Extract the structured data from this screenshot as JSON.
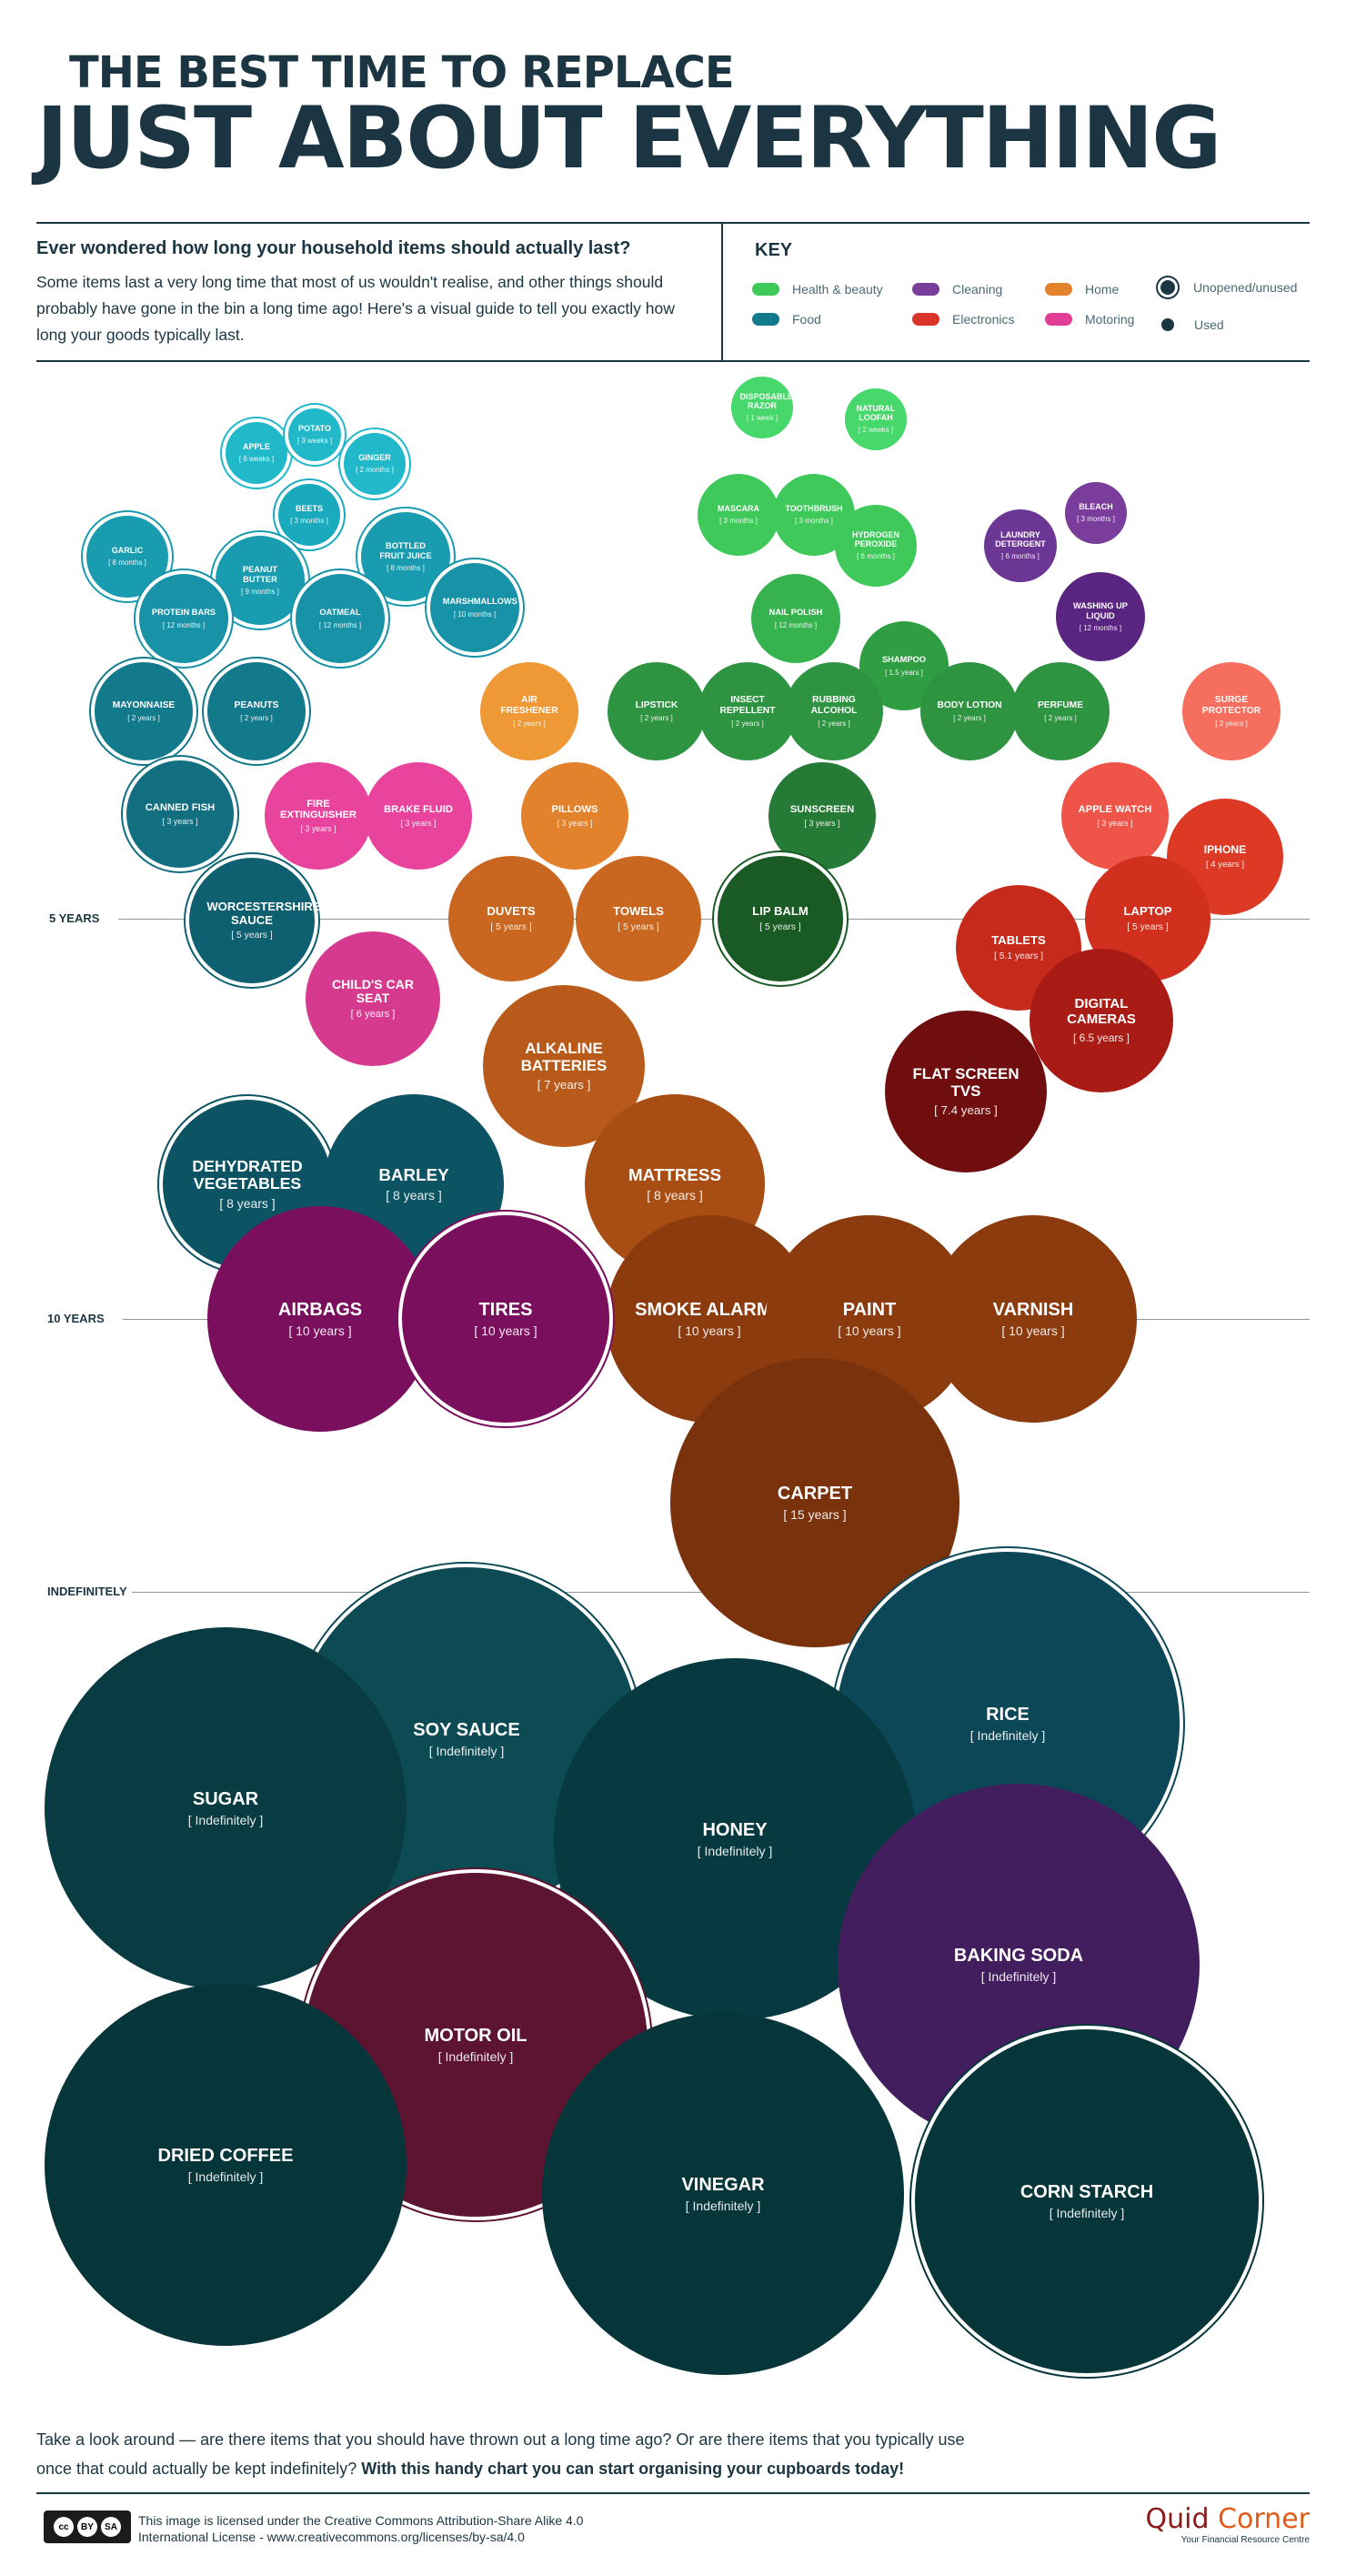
{
  "header": {
    "title_line1": "THE BEST TIME TO REPLACE",
    "title_line2": "JUST ABOUT EVERYTHING"
  },
  "intro": {
    "heading": "Ever wondered how long your household items should actually last?",
    "body": "Some items last a very long time that most of us wouldn't realise, and other things should probably have gone in the bin a long time ago! Here's a visual guide to tell you exactly how long your goods typically last."
  },
  "key": {
    "title": "KEY",
    "categories": [
      {
        "label": "Health & beauty",
        "color": "#3fc95a"
      },
      {
        "label": "Food",
        "color": "#137a8c"
      },
      {
        "label": "Cleaning",
        "color": "#7b3d9b"
      },
      {
        "label": "Electronics",
        "color": "#d9352a"
      },
      {
        "label": "Home",
        "color": "#e3822c"
      },
      {
        "label": "Motoring",
        "color": "#e23d97"
      }
    ],
    "unopened": "Unopened/unused",
    "used": "Used"
  },
  "timeline": {
    "five_years": "5 YEARS",
    "ten_years": "10 YEARS",
    "indefinitely": "INDEFINITELY"
  },
  "items": [
    {
      "name": "DISPOSABLE RAZOR",
      "duration": "[ 1 week ]",
      "color": "#46d86a"
    },
    {
      "name": "NATURAL LOOFAH",
      "duration": "[ 2 weeks ]",
      "color": "#46d86a"
    },
    {
      "name": "MASCARA",
      "duration": "[ 3 months ]",
      "color": "#3fc95a"
    },
    {
      "name": "TOOTHBRUSH",
      "duration": "[ 3 months ]",
      "color": "#3fc95a"
    },
    {
      "name": "HYDROGEN PEROXIDE",
      "duration": "[ 6 months ]",
      "color": "#3fc95a"
    },
    {
      "name": "NAIL POLISH",
      "duration": "[ 12 months ]",
      "color": "#36b24e"
    },
    {
      "name": "SHAMPOO",
      "duration": "[ 1.5 years ]",
      "color": "#2f9e43"
    },
    {
      "name": "LIPSTICK",
      "duration": "[ 2 years ]",
      "color": "#2f9442"
    },
    {
      "name": "INSECT REPELLENT",
      "duration": "[ 2 years ]",
      "color": "#2f9442"
    },
    {
      "name": "RUBBING ALCOHOL",
      "duration": "[ 2 years ]",
      "color": "#2f9442"
    },
    {
      "name": "BODY LOTION",
      "duration": "[ 2 years ]",
      "color": "#2f9442"
    },
    {
      "name": "PERFUME",
      "duration": "[ 2 years ]",
      "color": "#2f9442"
    },
    {
      "name": "SUNSCREEN",
      "duration": "[ 3 years ]",
      "color": "#257a36"
    },
    {
      "name": "LIP BALM",
      "duration": "[ 5 years ]",
      "color": "#1a5a25"
    },
    {
      "name": "LAUNDRY DETERGENT",
      "duration": "[ 6 months ]",
      "color": "#6b3694"
    },
    {
      "name": "BLEACH",
      "duration": "[ 3 months ]",
      "color": "#7b3d9b"
    },
    {
      "name": "WASHING UP LIQUID",
      "duration": "[ 12 months ]",
      "color": "#5a2580"
    },
    {
      "name": "APPLE",
      "duration": "[ 6 weeks ]",
      "color": "#21b8c9"
    },
    {
      "name": "POTATO",
      "duration": "[ 3 weeks ]",
      "color": "#21b8c9"
    },
    {
      "name": "GINGER",
      "duration": "[ 2 months ]",
      "color": "#21b8c9"
    },
    {
      "name": "BEETS",
      "duration": "[ 3 months ]",
      "color": "#1aaabd"
    },
    {
      "name": "GARLIC",
      "duration": "[ 8 months ]",
      "color": "#1a9cb0"
    },
    {
      "name": "PEANUT BUTTER",
      "duration": "[ 9 months ]",
      "color": "#1a9cb0"
    },
    {
      "name": "BOTTLED FRUIT JUICE",
      "duration": "[ 8 months ]",
      "color": "#1a9cb0"
    },
    {
      "name": "PROTEIN BARS",
      "duration": "[ 12 months ]",
      "color": "#1792a6"
    },
    {
      "name": "OATMEAL",
      "duration": "[ 12 months ]",
      "color": "#1792a6"
    },
    {
      "name": "MARSHMALLOWS",
      "duration": "[ 10 months ]",
      "color": "#1792a6"
    },
    {
      "name": "MAYONNAISE",
      "duration": "[ 2 years ]",
      "color": "#137a8c"
    },
    {
      "name": "PEANUTS",
      "duration": "[ 2 years ]",
      "color": "#137a8c"
    },
    {
      "name": "CANNED FISH",
      "duration": "[ 3 years ]",
      "color": "#116f80"
    },
    {
      "name": "WORCESTERSHIRE SAUCE",
      "duration": "[ 5 years ]",
      "color": "#0e6070"
    },
    {
      "name": "DEHYDRATED VEGETABLES",
      "duration": "[ 8 years ]",
      "color": "#0c5464"
    },
    {
      "name": "BARLEY",
      "duration": "[ 8 years ]",
      "color": "#0c5464"
    },
    {
      "name": "AIR FRESHENER",
      "duration": "[ 2 years ]",
      "color": "#ef9836"
    },
    {
      "name": "PILLOWS",
      "duration": "[ 3 years ]",
      "color": "#e3822c"
    },
    {
      "name": "DUVETS",
      "duration": "[ 5 years ]",
      "color": "#c96620"
    },
    {
      "name": "TOWELS",
      "duration": "[ 5 years ]",
      "color": "#c96620"
    },
    {
      "name": "ALKALINE BATTERIES",
      "duration": "[ 7 years ]",
      "color": "#b85a1a"
    },
    {
      "name": "MATTRESS",
      "duration": "[ 8 years ]",
      "color": "#a84e14"
    },
    {
      "name": "SMOKE ALARMS",
      "duration": "[ 10 years ]",
      "color": "#8c3b0e"
    },
    {
      "name": "PAINT",
      "duration": "[ 10 years ]",
      "color": "#8c3b0e"
    },
    {
      "name": "VARNISH",
      "duration": "[ 10 years ]",
      "color": "#8c3b0e"
    },
    {
      "name": "CARPET",
      "duration": "[ 15 years ]",
      "color": "#7a320c"
    },
    {
      "name": "FIRE EXTINGUISHER",
      "duration": "[ 3 years ]",
      "color": "#e8449e"
    },
    {
      "name": "BRAKE FLUID",
      "duration": "[ 3 years ]",
      "color": "#e8449e"
    },
    {
      "name": "CHILD'S CAR SEAT",
      "duration": "[ 6 years ]",
      "color": "#d63a8f"
    },
    {
      "name": "AIRBAGS",
      "duration": "[ 10 years ]",
      "color": "#7a0f5e"
    },
    {
      "name": "TIRES",
      "duration": "[ 10 years ]",
      "color": "#7a0f5e"
    },
    {
      "name": "SURGE PROTECTOR",
      "duration": "[ 2 years ]",
      "color": "#f56e5e"
    },
    {
      "name": "APPLE WATCH",
      "duration": "[ 3 years ]",
      "color": "#ee5448"
    },
    {
      "name": "IPHONE",
      "duration": "[ 4 years ]",
      "color": "#dd3a26"
    },
    {
      "name": "LAPTOP",
      "duration": "[ 5 years ]",
      "color": "#d2301f"
    },
    {
      "name": "TABLETS",
      "duration": "[ 5.1 years ]",
      "color": "#c52a1b"
    },
    {
      "name": "DIGITAL CAMERAS",
      "duration": "[ 6.5 years ]",
      "color": "#a91c15"
    },
    {
      "name": "FLAT SCREEN TVS",
      "duration": "[ 7.4 years ]",
      "color": "#700d0f"
    },
    {
      "name": "SOY SAUCE",
      "duration": "[ Indefinitely ]",
      "color": "#0c4a54"
    },
    {
      "name": "RICE",
      "duration": "[ Indefinitely ]",
      "color": "#0b4756"
    },
    {
      "name": "SUGAR",
      "duration": "[ Indefinitely ]",
      "color": "#083b42"
    },
    {
      "name": "HONEY",
      "duration": "[ Indefinitely ]",
      "color": "#063a40"
    },
    {
      "name": "BAKING SODA",
      "duration": "[ Indefinitely ]",
      "color": "#431e5e"
    },
    {
      "name": "MOTOR OIL",
      "duration": "[ Indefinitely ]",
      "color": "#5c1430"
    },
    {
      "name": "DRIED COFFEE",
      "duration": "[ Indefinitely ]",
      "color": "#06353a"
    },
    {
      "name": "VINEGAR",
      "duration": "[ Indefinitely ]",
      "color": "#06353a"
    },
    {
      "name": "CORN STARCH",
      "duration": "[ Indefinitely ]",
      "color": "#06353a"
    }
  ],
  "footer": {
    "text": "Take a look around — are there items that you should have thrown out a long time ago? Or are there items that you typically use once that could actually be kept indefinitely? ",
    "text_bold": "With this handy chart you can start organising your cupboards today!",
    "license": "This image is licensed under the Creative Commons Attribution-Share Alike 4.0 International License - www.creativecommons.org/licenses/by-sa/4.0",
    "cc_by": "BY",
    "cc_sa": "SA",
    "brand_quid": "Quid",
    "brand_corner": "Corner",
    "brand_tagline": "Your Financial Resource Centre"
  }
}
